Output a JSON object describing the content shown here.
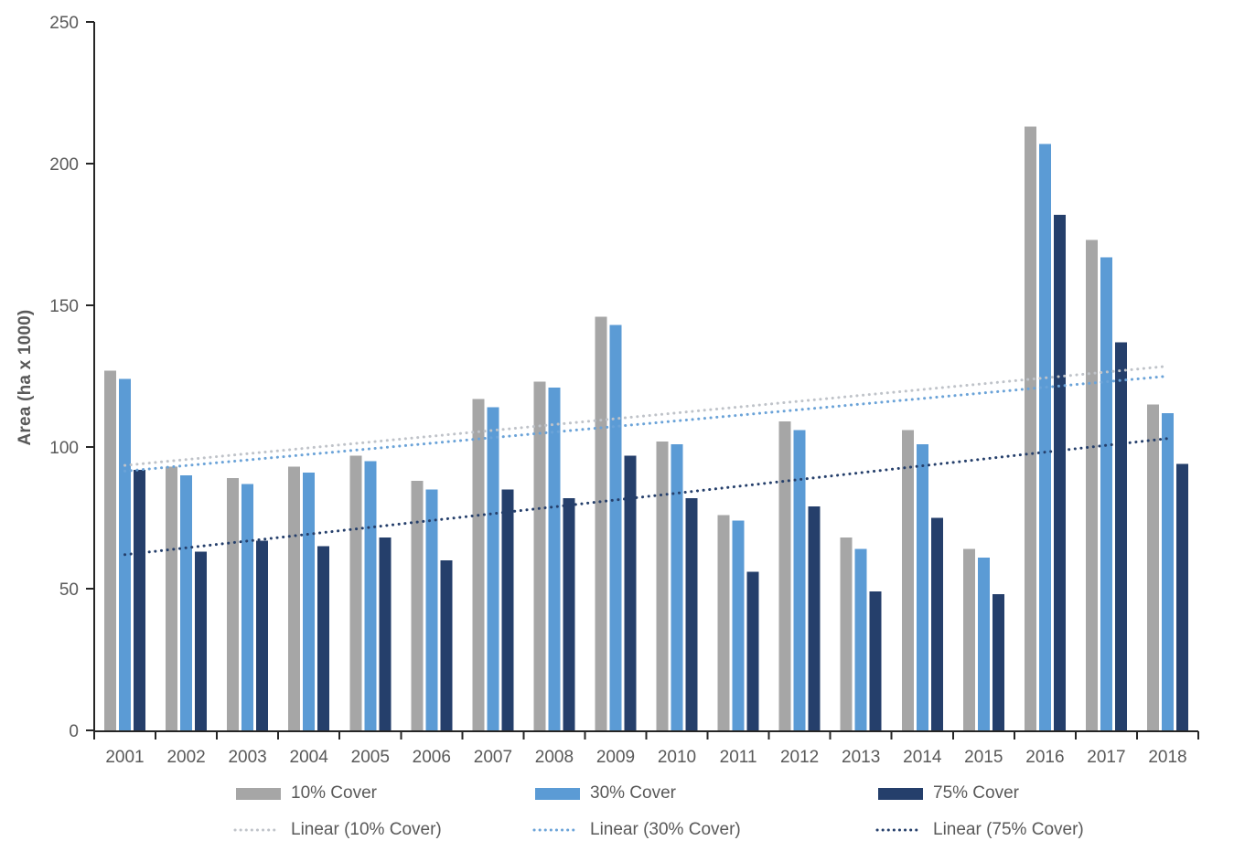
{
  "chart_data": {
    "type": "bar",
    "title": "",
    "xlabel": "",
    "ylabel": "Area (ha x 1000)",
    "ylim": [
      0,
      250
    ],
    "ytick_step": 50,
    "grid": false,
    "legend_position": "bottom",
    "axis_color": "#262626",
    "label_color": "#595959",
    "categories": [
      "2001",
      "2002",
      "2003",
      "2004",
      "2005",
      "2006",
      "2007",
      "2008",
      "2009",
      "2010",
      "2011",
      "2012",
      "2013",
      "2014",
      "2015",
      "2016",
      "2017",
      "2018"
    ],
    "series": [
      {
        "name": "10% Cover",
        "color": "#a6a6a6",
        "values": [
          127,
          93,
          89,
          93,
          97,
          88,
          117,
          123,
          146,
          102,
          76,
          109,
          68,
          106,
          64,
          213,
          173,
          115
        ]
      },
      {
        "name": "30% Cover",
        "color": "#5b9bd5",
        "values": [
          124,
          90,
          87,
          91,
          95,
          85,
          114,
          121,
          143,
          101,
          74,
          106,
          64,
          101,
          61,
          207,
          167,
          112
        ]
      },
      {
        "name": "75% Cover",
        "color": "#253f6b",
        "values": [
          92,
          63,
          67,
          65,
          68,
          60,
          85,
          82,
          97,
          82,
          56,
          79,
          49,
          75,
          48,
          182,
          137,
          94
        ]
      }
    ],
    "trendlines": [
      {
        "name": "Linear (10% Cover)",
        "color": "#bfc3c9",
        "start": 93.5,
        "end": 128.5
      },
      {
        "name": "Linear (30% Cover)",
        "color": "#6ba3d8",
        "start": 91.5,
        "end": 125
      },
      {
        "name": "Linear (75% Cover)",
        "color": "#253f6b",
        "start": 62,
        "end": 103
      }
    ]
  }
}
